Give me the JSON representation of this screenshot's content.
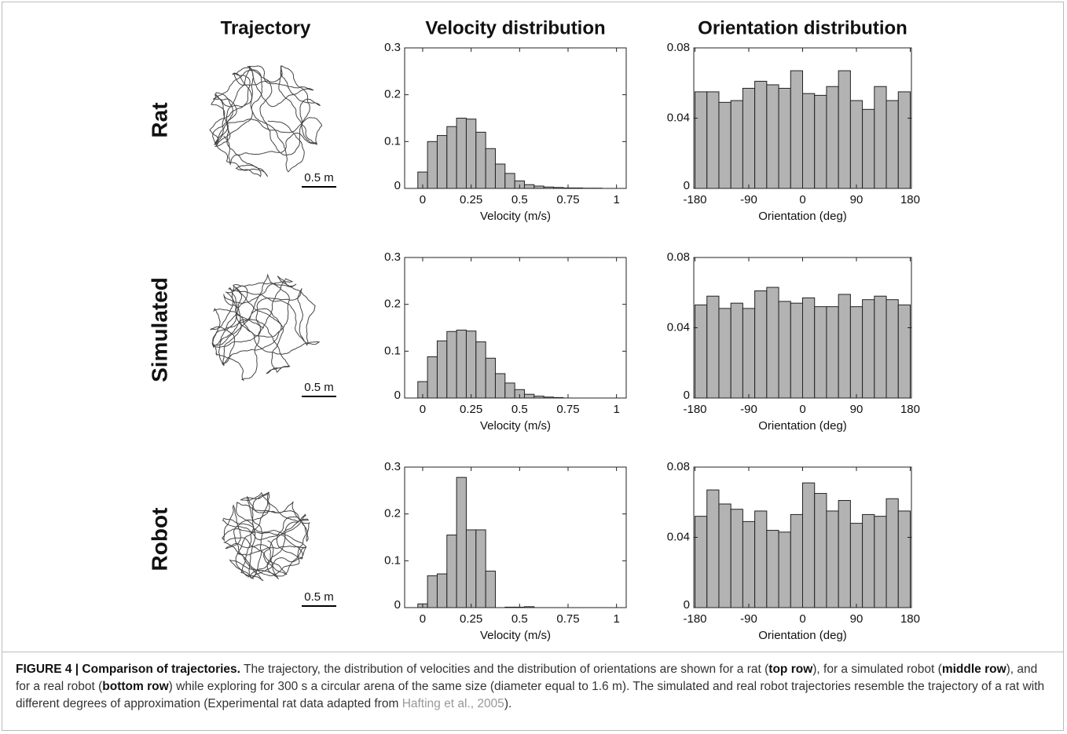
{
  "column_headers": [
    "Trajectory"
  ],
  "row_labels": [
    "Rat",
    "Simulated",
    "Robot"
  ],
  "scale_bars": [
    "0.5 m",
    "0.5 m",
    "0.5 m"
  ],
  "chart_data": [
    {
      "type": "histogram",
      "title": "Velocity distribution",
      "xlabel": "Velocity (m/s)",
      "color": "#b3b3b3",
      "bins": [
        -0.025,
        0.025,
        0.075,
        0.125,
        0.175,
        0.225,
        0.275,
        0.325,
        0.375,
        0.425,
        0.475,
        0.525,
        0.575,
        0.625,
        0.675,
        0.725,
        0.775,
        0.825,
        0.875,
        0.925,
        0.975,
        1.025
      ],
      "values": [
        0.035,
        0.1,
        0.113,
        0.132,
        0.15,
        0.148,
        0.12,
        0.085,
        0.052,
        0.032,
        0.016,
        0.008,
        0.005,
        0.003,
        0.002,
        0.001,
        0.001,
        0.0005,
        0.0005,
        0,
        0
      ],
      "xlim": [
        -0.093,
        1.05
      ],
      "ylim": [
        0,
        0.3
      ],
      "xticks": [
        0,
        0.25,
        0.5,
        0.75,
        1
      ],
      "yticks": [
        0,
        0.1,
        0.2,
        0.3
      ]
    },
    {
      "type": "histogram",
      "title": "Orientation distribution",
      "xlabel": "Orientation (deg)",
      "color": "#b3b3b3",
      "bins": [
        -180,
        -160,
        -140,
        -120,
        -100,
        -80,
        -60,
        -40,
        -20,
        0,
        20,
        40,
        60,
        80,
        100,
        120,
        140,
        160,
        180
      ],
      "values": [
        0.055,
        0.055,
        0.049,
        0.05,
        0.057,
        0.061,
        0.059,
        0.057,
        0.067,
        0.054,
        0.053,
        0.058,
        0.067,
        0.05,
        0.045,
        0.058,
        0.05,
        0.055
      ],
      "xlim": [
        -182,
        182
      ],
      "ylim": [
        0,
        0.08
      ],
      "xticks": [
        -180,
        -90,
        0,
        90,
        180
      ],
      "yticks": [
        0,
        0.04,
        0.08
      ]
    },
    {
      "type": "histogram",
      "xlabel": "Velocity (m/s)",
      "color": "#b3b3b3",
      "bins": [
        -0.025,
        0.025,
        0.075,
        0.125,
        0.175,
        0.225,
        0.275,
        0.325,
        0.375,
        0.425,
        0.475,
        0.525,
        0.575,
        0.625,
        0.675,
        0.725,
        0.775,
        0.825,
        0.875,
        0.925,
        0.975,
        1.025
      ],
      "values": [
        0.035,
        0.088,
        0.122,
        0.142,
        0.145,
        0.143,
        0.12,
        0.085,
        0.052,
        0.032,
        0.018,
        0.008,
        0.004,
        0.002,
        0.001,
        0,
        0,
        0,
        0,
        0,
        0
      ],
      "xlim": [
        -0.093,
        1.05
      ],
      "ylim": [
        0,
        0.3
      ],
      "xticks": [
        0,
        0.25,
        0.5,
        0.75,
        1
      ],
      "yticks": [
        0,
        0.1,
        0.2,
        0.3
      ]
    },
    {
      "type": "histogram",
      "xlabel": "Orientation (deg)",
      "color": "#b3b3b3",
      "bins": [
        -180,
        -160,
        -140,
        -120,
        -100,
        -80,
        -60,
        -40,
        -20,
        0,
        20,
        40,
        60,
        80,
        100,
        120,
        140,
        160,
        180
      ],
      "values": [
        0.053,
        0.058,
        0.051,
        0.054,
        0.051,
        0.061,
        0.063,
        0.055,
        0.054,
        0.057,
        0.052,
        0.052,
        0.059,
        0.052,
        0.056,
        0.058,
        0.056,
        0.053
      ],
      "xlim": [
        -182,
        182
      ],
      "ylim": [
        0,
        0.08
      ],
      "xticks": [
        -180,
        -90,
        0,
        90,
        180
      ],
      "yticks": [
        0,
        0.04,
        0.08
      ]
    },
    {
      "type": "histogram",
      "xlabel": "Velocity (m/s)",
      "color": "#b3b3b3",
      "bins": [
        -0.025,
        0.025,
        0.075,
        0.125,
        0.175,
        0.225,
        0.275,
        0.325,
        0.375,
        0.425,
        0.475,
        0.525,
        0.575,
        0.625,
        0.675,
        0.725,
        0.775,
        0.825,
        0.875,
        0.925,
        0.975,
        1.025
      ],
      "values": [
        0.008,
        0.068,
        0.072,
        0.155,
        0.278,
        0.166,
        0.166,
        0.078,
        0,
        0.001,
        0.001,
        0.002,
        0,
        0,
        0,
        0,
        0,
        0,
        0,
        0,
        0
      ],
      "xlim": [
        -0.093,
        1.05
      ],
      "ylim": [
        0,
        0.3
      ],
      "xticks": [
        0,
        0.25,
        0.5,
        0.75,
        1
      ],
      "yticks": [
        0,
        0.1,
        0.2,
        0.3
      ]
    },
    {
      "type": "histogram",
      "xlabel": "Orientation (deg)",
      "color": "#b3b3b3",
      "bins": [
        -180,
        -160,
        -140,
        -120,
        -100,
        -80,
        -60,
        -40,
        -20,
        0,
        20,
        40,
        60,
        80,
        100,
        120,
        140,
        160,
        180
      ],
      "values": [
        0.052,
        0.067,
        0.059,
        0.056,
        0.049,
        0.055,
        0.044,
        0.043,
        0.053,
        0.071,
        0.065,
        0.055,
        0.061,
        0.048,
        0.053,
        0.052,
        0.062,
        0.055
      ],
      "xlim": [
        -182,
        182
      ],
      "ylim": [
        0,
        0.08
      ],
      "xticks": [
        -180,
        -90,
        0,
        90,
        180
      ],
      "yticks": [
        0,
        0.04,
        0.08
      ]
    }
  ],
  "caption": {
    "label": "FIGURE 4 | Comparison of trajectories.",
    "parts": [
      " The trajectory, the distribution of velocities and the distribution of orientations are shown for a rat (",
      "top row",
      "), for a simulated robot (",
      "middle row",
      "), and for a real robot (",
      "bottom row",
      ") while exploring for 300 s a circular arena of the same size (diameter equal to 1.6 m). The simulated and real robot trajectories resemble the trajectory of a rat with different degrees of approximation (Experimental rat data adapted from ",
      "Hafting et al., 2005",
      ")."
    ]
  }
}
